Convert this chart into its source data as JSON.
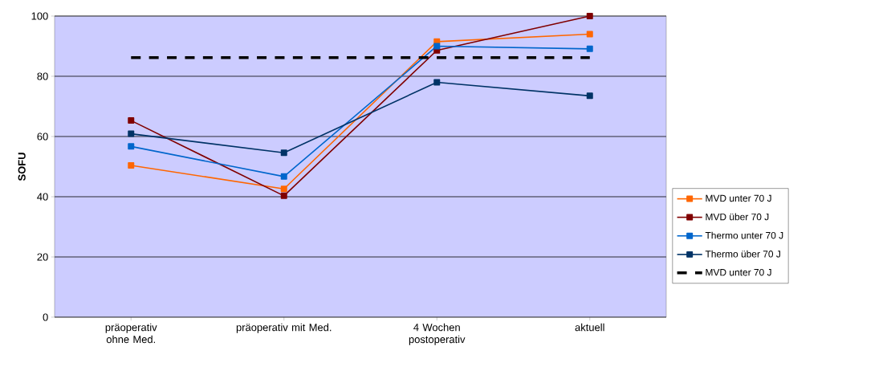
{
  "chart_data": {
    "type": "line",
    "ylabel": "SOFU",
    "categories": [
      "präoperativ ohne Med.",
      "präoperativ mit Med.",
      "4 Wochen postoperativ",
      "aktuell"
    ],
    "series": [
      {
        "name": "MVD unter 70 J",
        "color": "#ff6600",
        "values": [
          50.4,
          42.6,
          91.5,
          94
        ]
      },
      {
        "name": "MVD über 70 J",
        "color": "#800000",
        "values": [
          65.3,
          40.3,
          88.6,
          100
        ]
      },
      {
        "name": "Thermo unter 70 J",
        "color": "#0066cc",
        "values": [
          56.7,
          46.7,
          90,
          89.1
        ]
      },
      {
        "name": "Thermo über 70 J",
        "color": "#003366",
        "values": [
          60.9,
          54.6,
          78,
          73.5
        ]
      },
      {
        "name": "MVD unter 70 J",
        "color": "#000000",
        "values": [
          86.2,
          86.2,
          86.2,
          86.2
        ],
        "line_style": "dashed",
        "marker": "none"
      }
    ],
    "ylim": [
      0,
      100
    ],
    "yticks": [
      0,
      20,
      40,
      60,
      80,
      100
    ],
    "grid": "y",
    "legend": "right",
    "marker": "square",
    "line_style": "solid"
  }
}
